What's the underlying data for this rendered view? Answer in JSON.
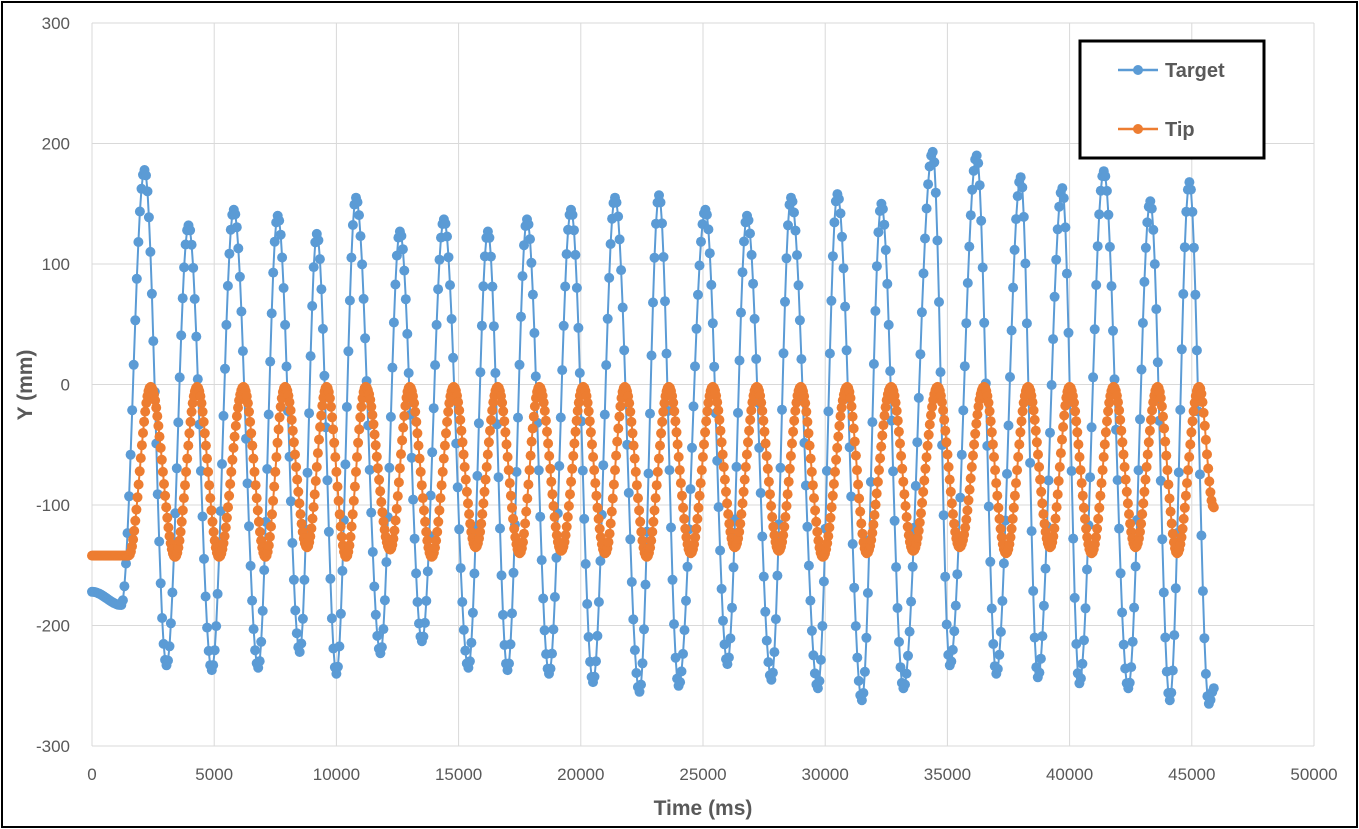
{
  "chart_data": {
    "type": "line",
    "title": "",
    "xlabel": "Time (ms)",
    "ylabel": "Y (mm)",
    "xlim": [
      0,
      50000
    ],
    "ylim": [
      -300,
      300
    ],
    "x_ticks": [
      "0",
      "5000",
      "10000",
      "15000",
      "20000",
      "25000",
      "30000",
      "35000",
      "40000",
      "45000",
      "50000"
    ],
    "y_ticks": [
      "300",
      "200",
      "100",
      "0",
      "-100",
      "-200",
      "-300"
    ],
    "grid": true,
    "legend": "top-right",
    "series": [
      {
        "name": "Target",
        "color": "#5B9BD5",
        "marker": "circle",
        "peaks": [
          {
            "x": 2150,
            "y": 178
          },
          {
            "x": 3950,
            "y": 132
          },
          {
            "x": 5800,
            "y": 145
          },
          {
            "x": 7600,
            "y": 140
          },
          {
            "x": 9200,
            "y": 125
          },
          {
            "x": 10800,
            "y": 155
          },
          {
            "x": 12600,
            "y": 127
          },
          {
            "x": 14400,
            "y": 137
          },
          {
            "x": 16200,
            "y": 127
          },
          {
            "x": 17800,
            "y": 137
          },
          {
            "x": 19600,
            "y": 145
          },
          {
            "x": 21400,
            "y": 155
          },
          {
            "x": 23200,
            "y": 157
          },
          {
            "x": 25100,
            "y": 145
          },
          {
            "x": 26800,
            "y": 140
          },
          {
            "x": 28600,
            "y": 155
          },
          {
            "x": 30500,
            "y": 158
          },
          {
            "x": 32300,
            "y": 150
          },
          {
            "x": 34400,
            "y": 193
          },
          {
            "x": 36200,
            "y": 190
          },
          {
            "x": 38000,
            "y": 172
          },
          {
            "x": 39700,
            "y": 163
          },
          {
            "x": 41400,
            "y": 177
          },
          {
            "x": 43300,
            "y": 152
          },
          {
            "x": 44900,
            "y": 168
          }
        ],
        "troughs": [
          {
            "x": 0,
            "y": -172
          },
          {
            "x": 1200,
            "y": -183
          },
          {
            "x": 3050,
            "y": -233
          },
          {
            "x": 4900,
            "y": -237
          },
          {
            "x": 6800,
            "y": -235
          },
          {
            "x": 8500,
            "y": -222
          },
          {
            "x": 10000,
            "y": -240
          },
          {
            "x": 11800,
            "y": -223
          },
          {
            "x": 13500,
            "y": -213
          },
          {
            "x": 15400,
            "y": -235
          },
          {
            "x": 17000,
            "y": -237
          },
          {
            "x": 18700,
            "y": -240
          },
          {
            "x": 20500,
            "y": -247
          },
          {
            "x": 22400,
            "y": -255
          },
          {
            "x": 24000,
            "y": -250
          },
          {
            "x": 26000,
            "y": -232
          },
          {
            "x": 27800,
            "y": -245
          },
          {
            "x": 29700,
            "y": -252
          },
          {
            "x": 31500,
            "y": -262
          },
          {
            "x": 33200,
            "y": -252
          },
          {
            "x": 35100,
            "y": -233
          },
          {
            "x": 37000,
            "y": -240
          },
          {
            "x": 38700,
            "y": -243
          },
          {
            "x": 40400,
            "y": -248
          },
          {
            "x": 42400,
            "y": -252
          },
          {
            "x": 44100,
            "y": -262
          },
          {
            "x": 45700,
            "y": -265
          }
        ],
        "end": {
          "x": 45900,
          "y": -252
        }
      },
      {
        "name": "Tip",
        "color": "#ED7D31",
        "marker": "circle",
        "flat_start": {
          "x": [
            0,
            1500
          ],
          "y": -142
        },
        "peaks": [
          {
            "x": 2400,
            "y": -2
          },
          {
            "x": 4300,
            "y": -2
          },
          {
            "x": 6200,
            "y": -2
          },
          {
            "x": 7900,
            "y": -2
          },
          {
            "x": 9600,
            "y": -2
          },
          {
            "x": 11200,
            "y": -2
          },
          {
            "x": 13000,
            "y": -2
          },
          {
            "x": 14800,
            "y": -2
          },
          {
            "x": 16600,
            "y": -2
          },
          {
            "x": 18300,
            "y": -2
          },
          {
            "x": 20100,
            "y": -2
          },
          {
            "x": 21800,
            "y": -2
          },
          {
            "x": 23600,
            "y": -2
          },
          {
            "x": 25400,
            "y": -2
          },
          {
            "x": 27200,
            "y": -2
          },
          {
            "x": 29000,
            "y": -2
          },
          {
            "x": 30900,
            "y": -2
          },
          {
            "x": 32700,
            "y": -2
          },
          {
            "x": 34600,
            "y": -2
          },
          {
            "x": 36500,
            "y": -2
          },
          {
            "x": 38300,
            "y": -2
          },
          {
            "x": 40000,
            "y": -2
          },
          {
            "x": 41800,
            "y": -2
          },
          {
            "x": 43600,
            "y": -2
          },
          {
            "x": 45300,
            "y": -2
          }
        ],
        "troughs": [
          {
            "x": 3400,
            "y": -143
          },
          {
            "x": 5200,
            "y": -143
          },
          {
            "x": 7100,
            "y": -143
          },
          {
            "x": 8800,
            "y": -135
          },
          {
            "x": 10400,
            "y": -143
          },
          {
            "x": 12200,
            "y": -137
          },
          {
            "x": 13900,
            "y": -143
          },
          {
            "x": 15700,
            "y": -135
          },
          {
            "x": 17500,
            "y": -140
          },
          {
            "x": 19200,
            "y": -138
          },
          {
            "x": 21000,
            "y": -140
          },
          {
            "x": 22700,
            "y": -143
          },
          {
            "x": 24500,
            "y": -140
          },
          {
            "x": 26300,
            "y": -135
          },
          {
            "x": 28100,
            "y": -138
          },
          {
            "x": 29900,
            "y": -143
          },
          {
            "x": 31700,
            "y": -140
          },
          {
            "x": 33600,
            "y": -138
          },
          {
            "x": 35500,
            "y": -135
          },
          {
            "x": 37400,
            "y": -140
          },
          {
            "x": 39200,
            "y": -135
          },
          {
            "x": 40900,
            "y": -140
          },
          {
            "x": 42700,
            "y": -135
          },
          {
            "x": 44400,
            "y": -140
          }
        ],
        "end": {
          "x": 45900,
          "y": -102
        }
      }
    ]
  }
}
